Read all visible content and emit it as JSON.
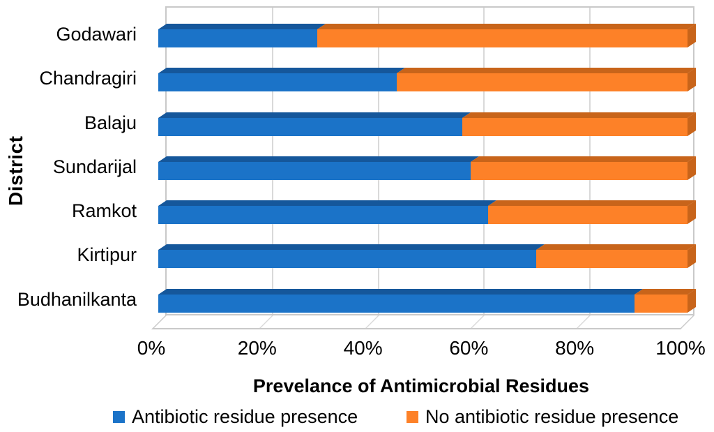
{
  "chart_data": {
    "type": "bar",
    "orientation": "horizontal",
    "stacked": true,
    "style": "3d",
    "title": "",
    "xlabel": "Prevelance of Antimicrobial Residues",
    "ylabel": "District",
    "categories": [
      "Godawari",
      "Chandragiri",
      "Balaju",
      "Sundarijal",
      "Ramkot",
      "Kirtipur",
      "Budhanilkanta"
    ],
    "series": [
      {
        "name": "Antibiotic residue presence",
        "color": "#1b73c8",
        "color_dark": "#15579b",
        "values": [
          30,
          45,
          57.5,
          59,
          62.3,
          71.4,
          90
        ]
      },
      {
        "name": "No antibiotic residue presence",
        "color": "#fd8128",
        "color_dark": "#c8641a",
        "values": [
          70,
          55,
          42.5,
          41,
          37.7,
          28.6,
          10
        ]
      }
    ],
    "x_ticks": [
      "0%",
      "20%",
      "40%",
      "60%",
      "80%",
      "100%"
    ],
    "xlim": [
      0,
      100
    ],
    "grid": true,
    "legend_position": "bottom"
  },
  "colors": {
    "gridline": "#d9d9d9",
    "plot_border": "#c9c9c9",
    "text": "#000000",
    "background": "#ffffff"
  }
}
